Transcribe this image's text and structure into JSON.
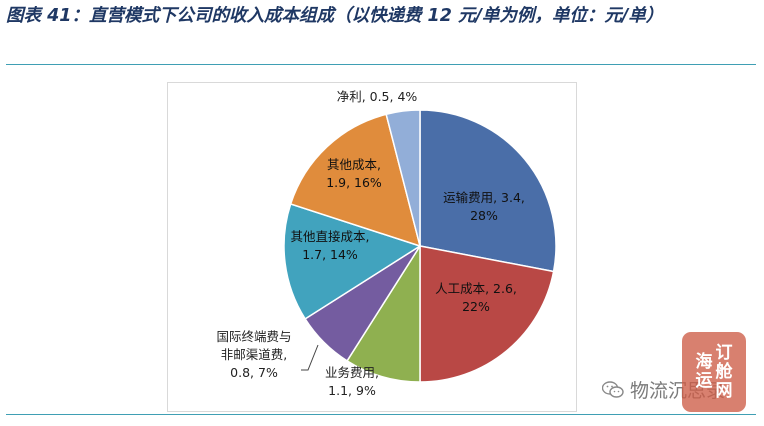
{
  "figure": {
    "caption": "图表 41：直营模式下公司的收入成本组成（以快递费 12 元/单为例，单位：元/单）"
  },
  "chart_data": {
    "type": "pie",
    "title": "",
    "slices": [
      {
        "label": "运输费用",
        "value": 3.4,
        "percent": 28,
        "color": "#4a6ea8",
        "text_lines": [
          "运输费用, 3.4,",
          "28%"
        ]
      },
      {
        "label": "人工成本",
        "value": 2.6,
        "percent": 22,
        "color": "#b94845",
        "text_lines": [
          "人工成本, 2.6,",
          "22%"
        ]
      },
      {
        "label": "业务费用",
        "value": 1.1,
        "percent": 9,
        "color": "#8fb050",
        "text_lines": [
          "业务费用,",
          "1.1, 9%"
        ]
      },
      {
        "label": "国际终端费与非邮渠道费",
        "value": 0.8,
        "percent": 7,
        "color": "#745ca0",
        "text_lines": [
          "国际终端费与",
          "非邮渠道费,",
          "0.8, 7%"
        ]
      },
      {
        "label": "其他直接成本",
        "value": 1.7,
        "percent": 14,
        "color": "#41a3be",
        "text_lines": [
          "其他直接成本,",
          "1.7, 14%"
        ]
      },
      {
        "label": "其他成本",
        "value": 1.9,
        "percent": 16,
        "color": "#e08c3c",
        "text_lines": [
          "其他成本,",
          "1.9, 16%"
        ]
      },
      {
        "label": "净利",
        "value": 0.5,
        "percent": 4,
        "color": "#92aed8",
        "text_lines": [
          "净利, 0.5, 4%"
        ]
      }
    ],
    "start_angle_deg": 0,
    "direction": "clockwise",
    "legend": "none"
  },
  "watermark": {
    "source_text": "物流沉思录",
    "icon": "wechat-icon",
    "seal_lines": [
      "订",
      "舱",
      "网",
      "海",
      "运"
    ]
  }
}
